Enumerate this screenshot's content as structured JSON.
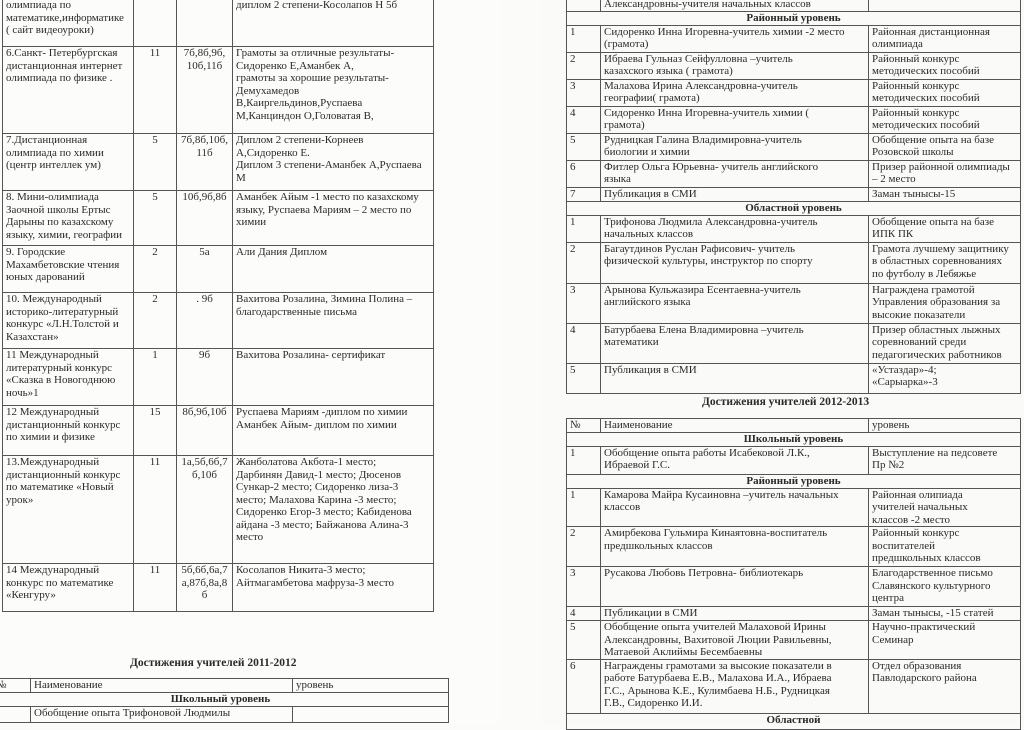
{
  "left_page": {
    "olympiad_rows": [
      {
        "name": "олимпиада по\nматематике,информатике\n( сайт видеоуроки)",
        "count": "",
        "classes": "",
        "result": "диплом 2 степени-Косолапов Н 5б"
      },
      {
        "name": "6.Санкт- Петербургская\nдистанционная интернет\nолимпиада по физике .",
        "count": "11",
        "classes": "7б,8б,9б,\n10б,11б",
        "result": "Грамоты за отличные результаты-\nСидоренко Е,Аманбек А,\nграмоты за хорошие результаты-\nДемухамедов\nВ,Каиргельдинов,Руспаева\nМ,Канциндон О,Головатая В,"
      },
      {
        "name": "7.Дистанционная\nолимпиада по химии\n(центр интеллек ум)",
        "count": "5",
        "classes": "7б,8б,10б,\n11б",
        "result": "Диплом 2 степени-Корнеев\nА,Сидоренко Е.\nДиплом 3 степени-Аманбек А,Руспаева\nМ"
      },
      {
        "name": "8. Мини-олимпиада\nЗаочной школы Ертыс\nДарыны  по казахскому\nязыку, химии, географии",
        "count": "5",
        "classes": "10б,9б,8б",
        "result": "Аманбек Айым -1 место по казахскому\nязыку, Руспаева Мариям – 2 место по\nхимии"
      },
      {
        "name": "9. Городские\nМахамбетовские чтения\nюных дарований",
        "count": "2",
        "classes": "5а",
        "result": "Али Дания  Диплом"
      },
      {
        "name": "10. Международный\nисторико-литературный\nконкурс «Л.Н.Толстой и\nКазахстан»",
        "count": "2",
        "classes": ". 9б",
        "result": "Вахитова Розалина, Зимина Полина –\nблагодарственные письма"
      },
      {
        "name": "11 Международный\nлитературный конкурс\n«Сказка в Новогоднюю\nночь»1",
        "count": "1",
        "classes": "9б",
        "result": "Вахитова Розалина- сертификат"
      },
      {
        "name": "12 Международный\nдистанционный конкурс\nпо химии и физике",
        "count": "15",
        "classes": "8б,9б,10б",
        "result": "Руспаева Мариям  -диплом по химии\nАманбек Айым- диплом по химии"
      },
      {
        "name": "13.Международный\nдистанционный конкурс\nпо математике «Новый\nурок»",
        "count": "11",
        "classes": "1а,5б,6б,7\nб,10б",
        "result": "Жанболатова Акбота-1 место;\nДарбинян Давид-1 место; Дюсенов\nСункар-2 место; Сидоренко лиза-3\nместо; Малахова Карина -3 место;\nСидоренко Егор-3 место; Кабиденова\nайдана -3 место; Байжанова Алина-3\nместо"
      },
      {
        "name": "14 Международный\nконкурс по математике\n«Кенгуру»",
        "count": "11",
        "classes": "5б,6б,6а,7\nа,87б,8а,8\nб",
        "result": "Косолапов Никита-3 место;\nАйтмагамбетова мафруза-3 место"
      }
    ],
    "heading_2011": "Достижения учителей 2011-2012",
    "teachers_2011_start": [
      {
        "type": "header",
        "num": "№",
        "name": "Наименование",
        "level": "уровень"
      },
      {
        "type": "section",
        "label": "Школьный уровень"
      },
      {
        "type": "item",
        "num": "",
        "name": "Обобщение опыта  Трифоновой Людмилы",
        "level": ""
      }
    ]
  },
  "right_page": {
    "teachers_2011_cont": [
      {
        "type": "item",
        "num": "",
        "name": "Александровны-учителя начальных классов",
        "level": ""
      },
      {
        "type": "section",
        "label": "Районный уровень"
      },
      {
        "type": "item",
        "num": "1",
        "name": "Сидоренко Инна Игоревна-учитель химии -2 место\n(грамота)",
        "level": "Районная дистанционная\nолимпиада"
      },
      {
        "type": "item",
        "num": "2",
        "name": " Ибраева Гульназ Сейфулловна –учитель\nказахского языка ( грамота)",
        "level": "Районный конкурс\nметодических пособий"
      },
      {
        "type": "item",
        "num": "3",
        "name": "Малахова Ирина Александровна-учитель\nгеографии( грамота)",
        "level": "Районный конкурс\nметодических пособий"
      },
      {
        "type": "item",
        "num": "4",
        "name": " Сидоренко Инна Игоревна-учитель химии        (\nграмота)",
        "level": "Районный конкурс\nметодических пособий"
      },
      {
        "type": "item",
        "num": "5",
        "name": "Рудницкая Галина Владимировна-учитель\nбиологии и химии",
        "level": "Обобщение опыта на базе\nРозовской школы"
      },
      {
        "type": "item",
        "num": "6",
        "name": "Фитлер Ольга Юрьевна- учитель английского\nязыка",
        "level": "Призер районной олимпиады\n– 2 место"
      },
      {
        "type": "item",
        "num": "7",
        "name": "Публикация в СМИ",
        "level": "Заман тынысы-15"
      },
      {
        "type": "section",
        "label": "Областной уровень"
      },
      {
        "type": "item",
        "num": "1",
        "name": "Трифонова Людмила Александровна-учитель\nначальных классов",
        "level": "Обобщение  опыта на базе\nИПК ПК"
      },
      {
        "type": "item",
        "num": "2",
        "name": "Багаутдинов Руслан Рафисович- учитель\nфизической культуры, инструктор по спорту",
        "level": "Грамота лучшему защитнику\nв областных соревнованиях\nпо футболу в Лебяжье"
      },
      {
        "type": "item",
        "num": "3",
        "name": "Арынова Кульжазира Есентаевна-учитель\nанглийского языка",
        "level": "Награждена грамотой\nУправления образования за\nвысокие показатели"
      },
      {
        "type": "item",
        "num": "4",
        "name": "Батурбаева Елена Владимировна –учитель\nматематики",
        "level": "Призер областных лыжных\nсоревнований среди\nпедагогических работников"
      },
      {
        "type": "item",
        "num": "5",
        "name": "Публикация в СМИ",
        "level": "«Устаздар»-4;\n«Сарыарка»-3"
      }
    ],
    "heading_2012": "Достижения учителей 2012-2013",
    "teachers_2012": [
      {
        "type": "header",
        "num": "№",
        "name": "Наименование",
        "level": "уровень"
      },
      {
        "type": "section",
        "label": "Школьный уровень"
      },
      {
        "type": "item",
        "num": "1",
        "name": "Обобщение опыта работы Исабековой Л.К.,\nИбраевой Г.С.",
        "level": "Выступление на педсовете\nПр №2"
      },
      {
        "type": "section",
        "label": "Районный уровень"
      },
      {
        "type": "item",
        "num": "1",
        "name": "Камарова Майра Кусаиновна –учитель начальных\nклассов",
        "level": "Районная олипиада\nучителей начальных\nклассов -2 место"
      },
      {
        "type": "item",
        "num": "2",
        "name": "Амирбекова Гульмира Кинаятовна-воспитатель\nпредшкольных классов",
        "level": "Районный конкурс\nвоспитателей\nпредшкольных классов"
      },
      {
        "type": "item",
        "num": "3",
        "name": "Русакова Любовь Петровна- библиотекарь",
        "level": "Благодарственное письмо\nСлавянского культурного\nцентра"
      },
      {
        "type": "item",
        "num": "4",
        "name": "Публикации в СМИ",
        "level": "Заман тынысы, -15 статей"
      },
      {
        "type": "item",
        "num": "5",
        "name": "Обобщение опыта учителей Малаховой Ирины\nАлександровны, Вахитовой Люции Равильевны,\nМатаевой Аклиймы Бесембаевны",
        "level": "Научно-практический\nСеминар"
      },
      {
        "type": "item",
        "num": "6",
        "name": "Награждены грамотами за высокие показатели в\nработе  Батурбаева Е.В., Малахова И.А., Ибраева\nГ.С., Арынова К.Е., Кулимбаева Н.Б., Рудницкая\nГ.В., Сидоренко И.И.",
        "level": "Отдел образования\nПавлодарского района"
      },
      {
        "type": "section",
        "label": "Областной"
      }
    ]
  }
}
